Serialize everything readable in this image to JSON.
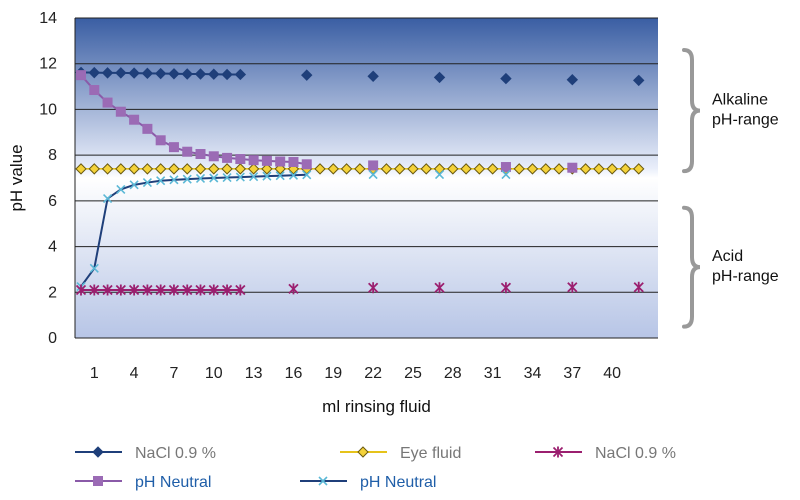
{
  "chart_data": {
    "type": "line",
    "xlabel": "ml rinsing fluid",
    "ylabel": "pH value",
    "ylim": [
      0,
      14
    ],
    "yticks": [
      "0",
      "2",
      "4",
      "6",
      "8",
      "10",
      "12",
      "14"
    ],
    "xlim": [
      0,
      43
    ],
    "xticks": [
      "1",
      "4",
      "7",
      "10",
      "13",
      "16",
      "19",
      "22",
      "25",
      "28",
      "31",
      "34",
      "37",
      "40"
    ],
    "grid": "horizontal",
    "background": "gradient-blue",
    "legend_placement": "bottom",
    "ranges": [
      {
        "label_line1": "Alkaline",
        "label_line2": "pH-range",
        "y_from": 7.3,
        "y_to": 12.6
      },
      {
        "label_line1": "Acid",
        "label_line2": "pH-range",
        "y_from": 0.5,
        "y_to": 5.7
      }
    ],
    "series": [
      {
        "name": "NaCl 0.9 %",
        "name_color": "#777777",
        "color": "#1f3f7a",
        "marker": "diamond",
        "x": [
          0,
          1,
          2,
          3,
          4,
          5,
          6,
          7,
          8,
          9,
          10,
          11,
          12,
          17,
          22,
          27,
          32,
          37,
          42
        ],
        "y": [
          11.62,
          11.61,
          11.6,
          11.6,
          11.59,
          11.58,
          11.57,
          11.56,
          11.55,
          11.55,
          11.54,
          11.53,
          11.53,
          11.5,
          11.45,
          11.4,
          11.35,
          11.3,
          11.27
        ],
        "connect_until_index": 12
      },
      {
        "name": "Eye fluid",
        "name_color": "#777777",
        "color": "#e6c31a",
        "marker": "diamond-yellow",
        "x": [
          0,
          1,
          2,
          3,
          4,
          5,
          6,
          7,
          8,
          9,
          10,
          11,
          12,
          13,
          14,
          15,
          16,
          17,
          18,
          19,
          20,
          21,
          22,
          23,
          24,
          25,
          26,
          27,
          28,
          29,
          30,
          31,
          32,
          33,
          34,
          35,
          36,
          37,
          38,
          39,
          40,
          41,
          42
        ],
        "y": [
          7.4,
          7.4,
          7.4,
          7.4,
          7.4,
          7.4,
          7.4,
          7.4,
          7.4,
          7.4,
          7.4,
          7.4,
          7.4,
          7.4,
          7.4,
          7.4,
          7.4,
          7.4,
          7.4,
          7.4,
          7.4,
          7.4,
          7.4,
          7.4,
          7.4,
          7.4,
          7.4,
          7.4,
          7.4,
          7.4,
          7.4,
          7.4,
          7.4,
          7.4,
          7.4,
          7.4,
          7.4,
          7.4,
          7.4,
          7.4,
          7.4,
          7.4,
          7.4
        ],
        "connect_until_index": 42
      },
      {
        "name": "NaCl 0.9 %",
        "name_color": "#777777",
        "color": "#9b1f6f",
        "marker": "star",
        "x": [
          0,
          1,
          2,
          3,
          4,
          5,
          6,
          7,
          8,
          9,
          10,
          11,
          12,
          16,
          22,
          27,
          32,
          37,
          42
        ],
        "y": [
          2.1,
          2.1,
          2.1,
          2.1,
          2.1,
          2.1,
          2.1,
          2.1,
          2.1,
          2.1,
          2.1,
          2.1,
          2.1,
          2.15,
          2.2,
          2.2,
          2.2,
          2.22,
          2.22
        ],
        "connect_until_index": 12
      },
      {
        "name": "pH Neutral",
        "name_color": "#1f5ea8",
        "color": "#9b6bb5",
        "line_color": "#8a5aa8",
        "marker": "square",
        "x": [
          0,
          1,
          2,
          3,
          4,
          5,
          6,
          7,
          8,
          9,
          10,
          11,
          12,
          13,
          14,
          15,
          16,
          17,
          22,
          32,
          37
        ],
        "y": [
          11.5,
          10.85,
          10.3,
          9.9,
          9.55,
          9.15,
          8.65,
          8.35,
          8.15,
          8.05,
          7.95,
          7.88,
          7.83,
          7.78,
          7.75,
          7.72,
          7.7,
          7.6,
          7.55,
          7.48,
          7.45
        ],
        "connect_until_index": 17
      },
      {
        "name": "pH Neutral",
        "name_color": "#1f5ea8",
        "color": "#1f3f7a",
        "marker_color": "#5bb8d6",
        "marker": "x",
        "x": [
          0,
          1,
          2,
          3,
          4,
          5,
          6,
          7,
          8,
          9,
          10,
          11,
          12,
          13,
          14,
          15,
          16,
          17,
          22,
          27,
          32
        ],
        "y": [
          2.25,
          3.05,
          6.1,
          6.5,
          6.7,
          6.8,
          6.88,
          6.92,
          6.95,
          6.98,
          7.0,
          7.02,
          7.04,
          7.06,
          7.08,
          7.1,
          7.12,
          7.14,
          7.15,
          7.15,
          7.15
        ],
        "connect_until_index": 17
      }
    ]
  }
}
